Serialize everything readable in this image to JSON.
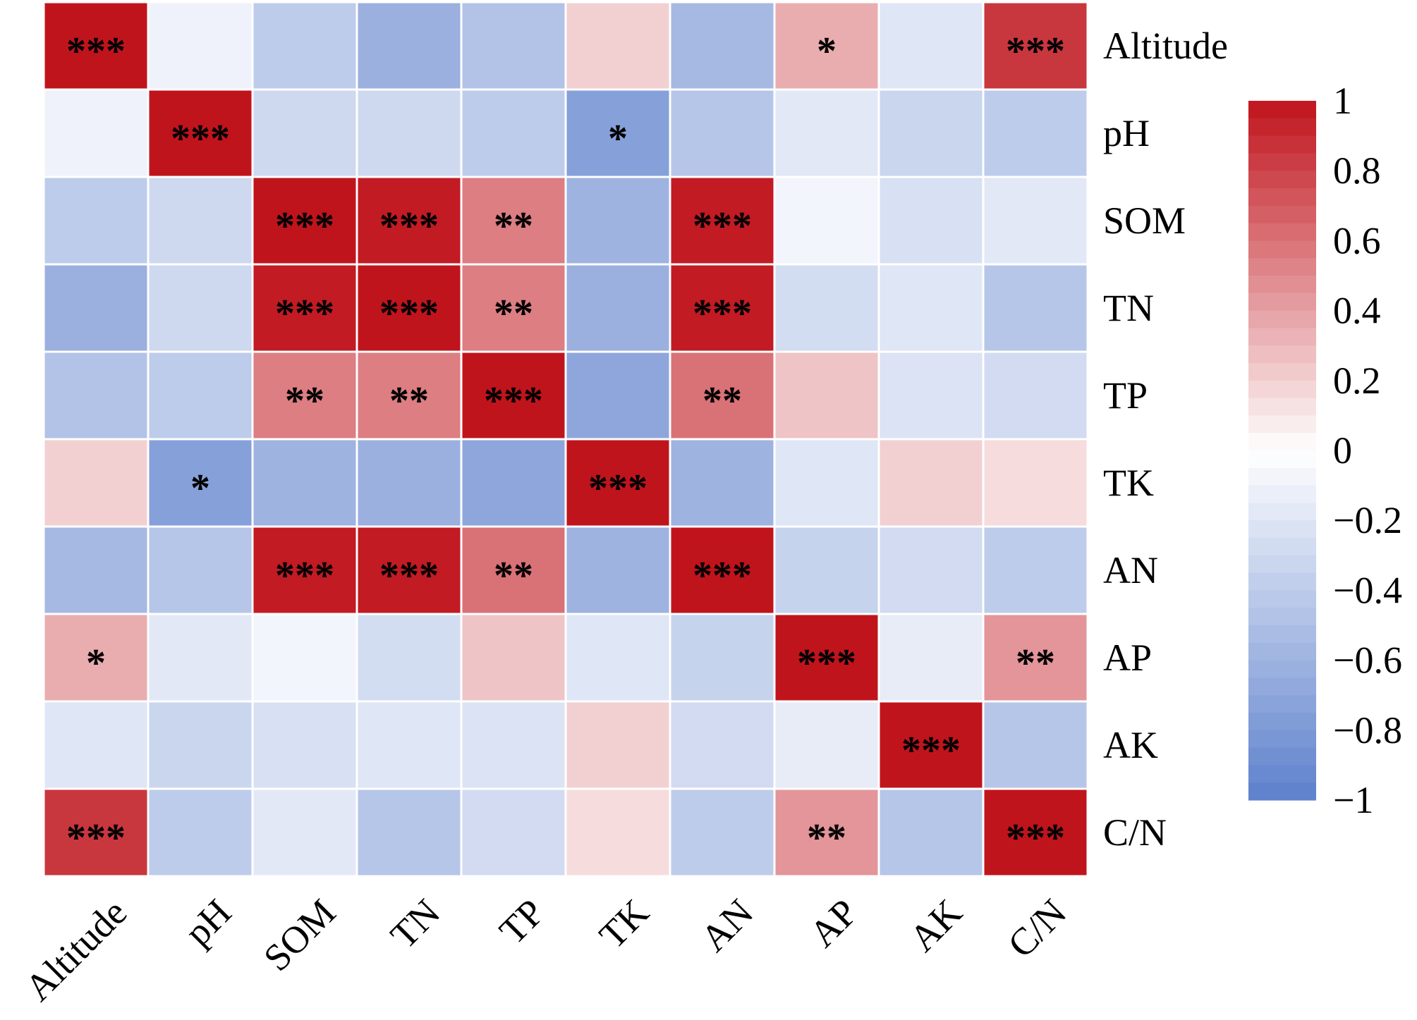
{
  "chart_data": {
    "type": "heatmap",
    "title": "",
    "variables": [
      "Altitude",
      "pH",
      "SOM",
      "TN",
      "TP",
      "TK",
      "AN",
      "AP",
      "AK",
      "C/N"
    ],
    "colorbar": {
      "range": [
        -1,
        1
      ],
      "ticks": [
        1,
        0.8,
        0.6,
        0.4,
        0.2,
        0,
        -0.2,
        -0.4,
        -0.6,
        -0.8,
        -1
      ],
      "tick_labels": [
        "1",
        "0.8",
        "0.6",
        "0.4",
        "0.2",
        "0",
        "−0.2",
        "−0.4",
        "−0.6",
        "−0.8",
        "−1"
      ],
      "colors": {
        "high": "#C0141C",
        "mid": "#FFFFFF",
        "low": "#5D80CC"
      }
    },
    "values": [
      [
        1.0,
        -0.1,
        -0.4,
        -0.62,
        -0.47,
        0.2,
        -0.55,
        0.35,
        -0.2,
        0.85
      ],
      [
        -0.1,
        1.0,
        -0.3,
        -0.3,
        -0.4,
        -0.75,
        -0.45,
        -0.18,
        -0.33,
        -0.4
      ],
      [
        -0.4,
        -0.3,
        1.0,
        0.97,
        0.55,
        -0.6,
        0.97,
        -0.08,
        -0.24,
        -0.18
      ],
      [
        -0.62,
        -0.3,
        0.97,
        1.0,
        0.55,
        -0.62,
        0.97,
        -0.27,
        -0.2,
        -0.45
      ],
      [
        -0.47,
        -0.4,
        0.55,
        0.55,
        1.0,
        -0.7,
        0.6,
        0.25,
        -0.22,
        -0.28
      ],
      [
        0.2,
        -0.75,
        -0.6,
        -0.62,
        -0.7,
        1.0,
        -0.6,
        -0.2,
        0.2,
        0.15
      ],
      [
        -0.55,
        -0.45,
        0.97,
        0.97,
        0.6,
        -0.6,
        1.0,
        -0.35,
        -0.28,
        -0.4
      ],
      [
        0.35,
        -0.18,
        -0.08,
        -0.27,
        0.25,
        -0.2,
        -0.35,
        1.0,
        -0.15,
        0.45
      ],
      [
        -0.2,
        -0.33,
        -0.24,
        -0.2,
        -0.22,
        0.2,
        -0.28,
        -0.15,
        1.0,
        -0.45
      ],
      [
        0.85,
        -0.4,
        -0.18,
        -0.45,
        -0.28,
        0.15,
        -0.4,
        0.45,
        -0.45,
        1.0
      ]
    ],
    "significance": [
      [
        "***",
        "",
        "",
        "",
        "",
        "",
        "",
        "*",
        "",
        "***"
      ],
      [
        "",
        "***",
        "",
        "",
        "",
        "*",
        "",
        "",
        "",
        ""
      ],
      [
        "",
        "",
        "***",
        "***",
        "**",
        "",
        "***",
        "",
        "",
        ""
      ],
      [
        "",
        "",
        "***",
        "***",
        "**",
        "",
        "***",
        "",
        "",
        ""
      ],
      [
        "",
        "",
        "**",
        "**",
        "***",
        "",
        "**",
        "",
        "",
        ""
      ],
      [
        "",
        "*",
        "",
        "",
        "",
        "***",
        "",
        "",
        "",
        ""
      ],
      [
        "",
        "",
        "***",
        "***",
        "**",
        "",
        "***",
        "",
        "",
        ""
      ],
      [
        "*",
        "",
        "",
        "",
        "",
        "",
        "",
        "***",
        "",
        "**"
      ],
      [
        "",
        "",
        "",
        "",
        "",
        "",
        "",
        "",
        "***",
        ""
      ],
      [
        "***",
        "",
        "",
        "",
        "",
        "",
        "",
        "**",
        "",
        "***"
      ]
    ]
  }
}
